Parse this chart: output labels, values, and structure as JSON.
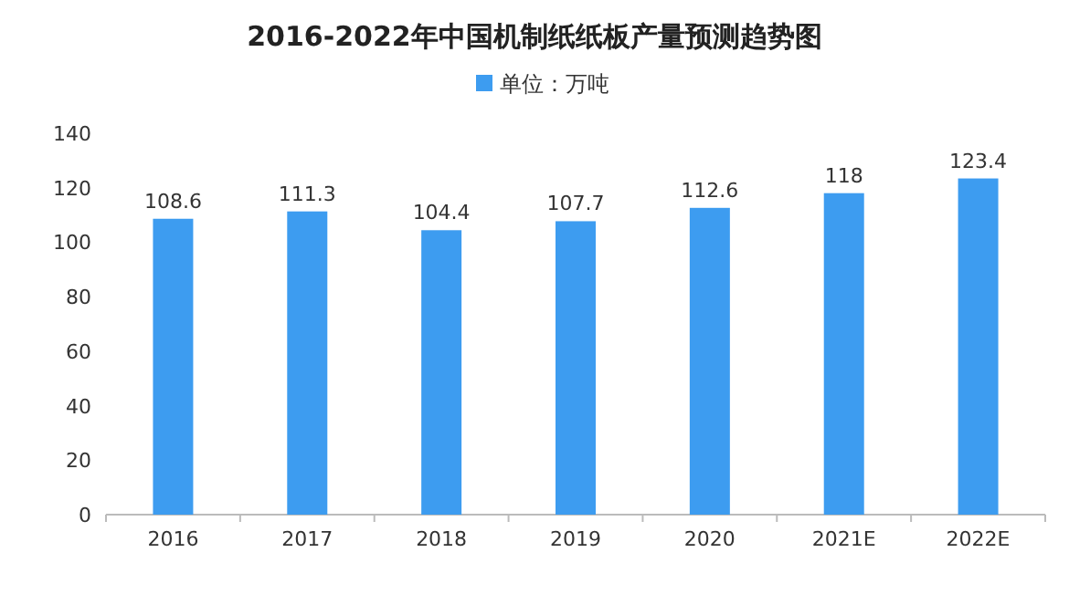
{
  "chart_data": {
    "type": "bar",
    "title": "2016-2022年中国机制纸纸板产量预测趋势图",
    "categories": [
      "2016",
      "2017",
      "2018",
      "2019",
      "2020",
      "2021E",
      "2022E"
    ],
    "series": [
      {
        "name": "单位：万吨",
        "color": "#3d9cf0",
        "values": [
          108.6,
          111.3,
          104.4,
          107.7,
          112.6,
          118,
          123.4
        ]
      }
    ],
    "ylim": [
      0,
      140
    ],
    "yticks": [
      0,
      20,
      40,
      60,
      80,
      100,
      120,
      140
    ],
    "data_labels": true,
    "legend": "top"
  }
}
